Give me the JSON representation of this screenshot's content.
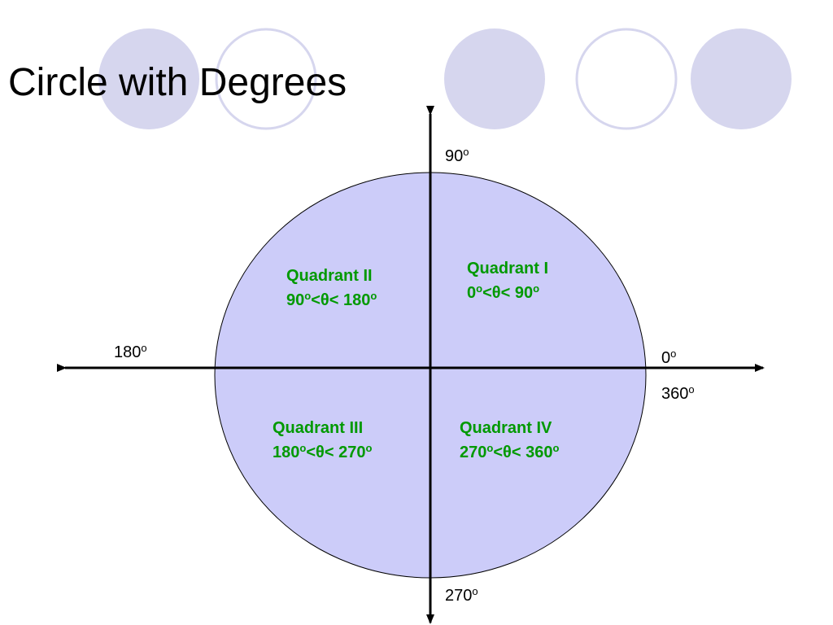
{
  "title": "Circle with Degrees",
  "colors": {
    "circle_fill": "#ccccf9",
    "decor_fill": "#d6d6ee",
    "decor_stroke": "#d6d6ee",
    "quadrant_text": "#009900",
    "axis": "#000000"
  },
  "axis_labels": {
    "top": {
      "value": "90",
      "sup": "o"
    },
    "left": {
      "value": "180",
      "sup": "o"
    },
    "right_upper": {
      "value": "0",
      "sup": "o"
    },
    "right_lower": {
      "value": "360",
      "sup": "o"
    },
    "bottom": {
      "value": "270",
      "sup": "o"
    }
  },
  "quadrants": [
    {
      "name": "Quadrant I",
      "range": {
        "low": "0",
        "high": "90",
        "sup": "o",
        "lt": "<",
        "theta": "θ",
        "lt2": "< "
      }
    },
    {
      "name": "Quadrant II",
      "range": {
        "low": "90",
        "high": "180",
        "sup": "o",
        "lt": "<",
        "theta": "θ",
        "lt2": "< "
      }
    },
    {
      "name": "Quadrant III",
      "range": {
        "low": "180",
        "high": "270",
        "sup": "o",
        "lt": "<",
        "theta": "θ",
        "lt2": "< "
      }
    },
    {
      "name": "Quadrant IV",
      "range": {
        "low": "270",
        "high": "360",
        "sup": "o",
        "lt": "<",
        "theta": "θ",
        "lt2": "< "
      }
    }
  ]
}
